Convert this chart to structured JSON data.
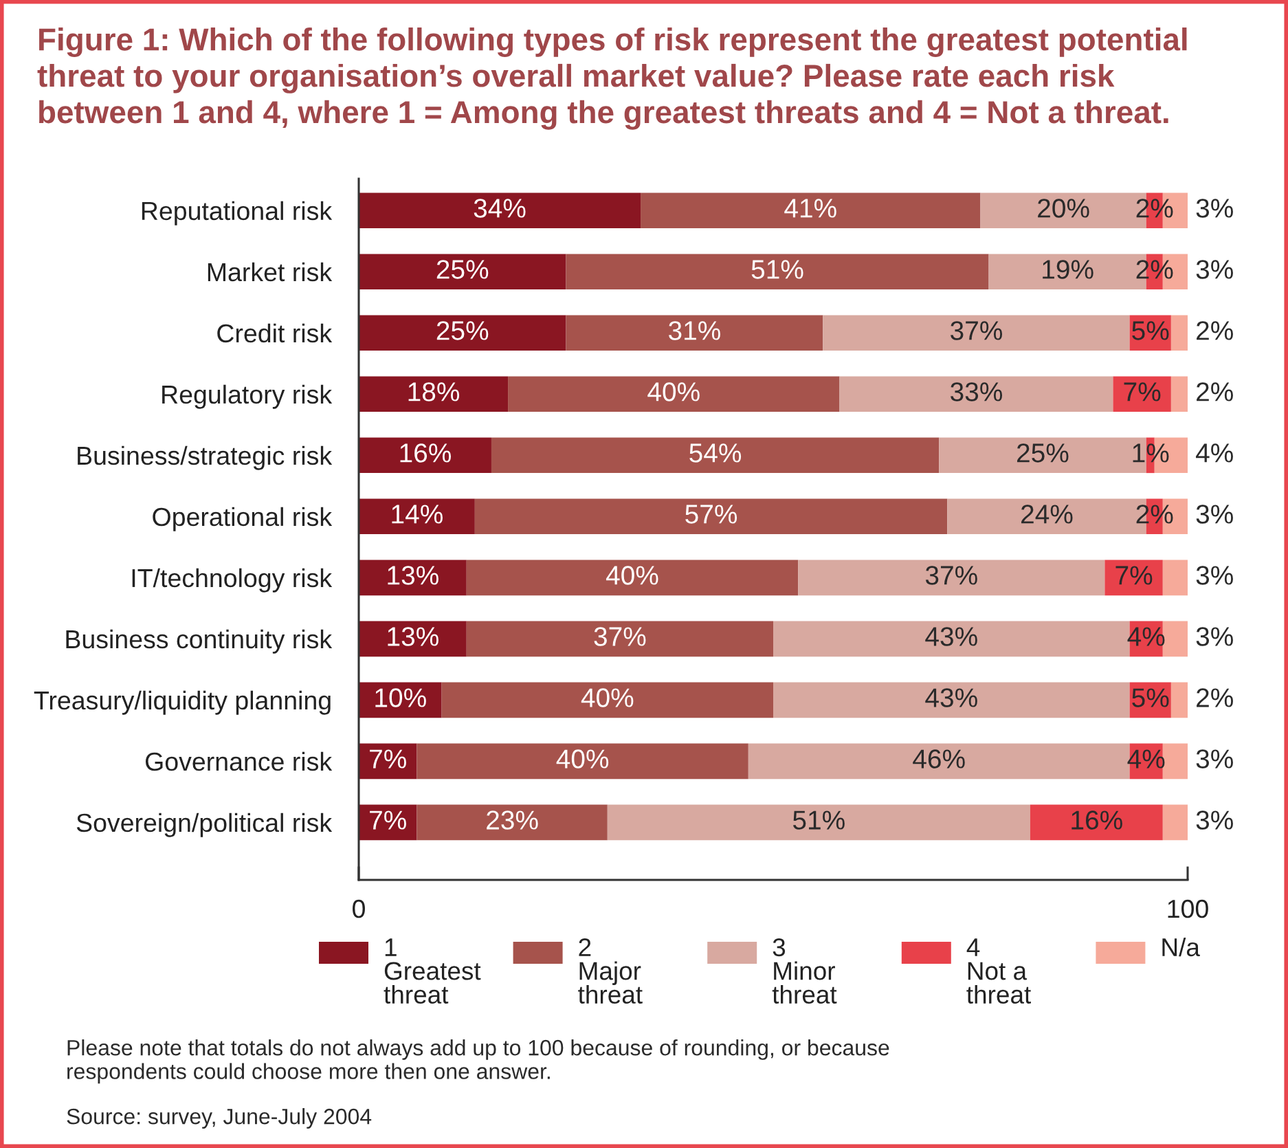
{
  "chart_data": {
    "type": "bar",
    "orientation": "horizontal",
    "stacked": true,
    "title": "Figure 1: Which of the following types of risk represent the greatest potential\nthreat to your organisation’s overall market value? Please rate each risk\nbetween 1 and 4, where 1 = Among the greatest threats and 4 = Not a threat.",
    "categories": [
      "Reputational risk",
      "Market risk",
      "Credit risk",
      "Regulatory risk",
      "Business/strategic risk",
      "Operational risk",
      "IT/technology risk",
      "Business continuity risk",
      "Treasury/liquidity planning",
      "Governance risk",
      "Sovereign/political risk"
    ],
    "series": [
      {
        "name": "1\nGreatest\nthreat",
        "color": "#8a1622",
        "values": [
          34,
          25,
          25,
          18,
          16,
          14,
          13,
          13,
          10,
          7,
          7
        ],
        "value_labels": [
          "34%",
          "25%",
          "25%",
          "18%",
          "16%",
          "14%",
          "13%",
          "13%",
          "10%",
          "7%",
          "7%"
        ]
      },
      {
        "name": "2\nMajor\nthreat",
        "color": "#a6534c",
        "values": [
          41,
          51,
          31,
          40,
          54,
          57,
          40,
          37,
          40,
          40,
          23
        ],
        "value_labels": [
          "41%",
          "51%",
          "31%",
          "40%",
          "54%",
          "57%",
          "40%",
          "37%",
          "40%",
          "40%",
          "23%"
        ]
      },
      {
        "name": "3\nMinor\nthreat",
        "color": "#d8a9a0",
        "values": [
          20,
          19,
          37,
          33,
          25,
          24,
          37,
          43,
          43,
          46,
          51
        ],
        "value_labels": [
          "20%",
          "19%",
          "37%",
          "33%",
          "25%",
          "24%",
          "37%",
          "43%",
          "43%",
          "46%",
          "51%"
        ]
      },
      {
        "name": "4\nNot a\nthreat",
        "color": "#e8414a",
        "values": [
          2,
          2,
          5,
          7,
          1,
          2,
          7,
          4,
          5,
          4,
          16
        ],
        "value_labels": [
          "2%",
          "2%",
          "5%",
          "7%",
          "1%",
          "2%",
          "7%",
          "4%",
          "5%",
          "4%",
          "16%"
        ]
      },
      {
        "name": "N/a",
        "color": "#f6aa9a",
        "values": [
          3,
          3,
          2,
          2,
          4,
          3,
          3,
          3,
          2,
          3,
          3
        ],
        "value_labels": [
          "3%",
          "3%",
          "2%",
          "2%",
          "4%",
          "3%",
          "3%",
          "3%",
          "2%",
          "3%",
          "3%"
        ]
      }
    ],
    "xlim": [
      0,
      100
    ],
    "xticks": [
      0,
      100
    ],
    "legend": "bottom",
    "annotations": [
      "Please note that totals do not always add up to 100 because of rounding, or because\nrespondents could choose more then one answer.",
      "Source: survey, June-July 2004"
    ]
  }
}
